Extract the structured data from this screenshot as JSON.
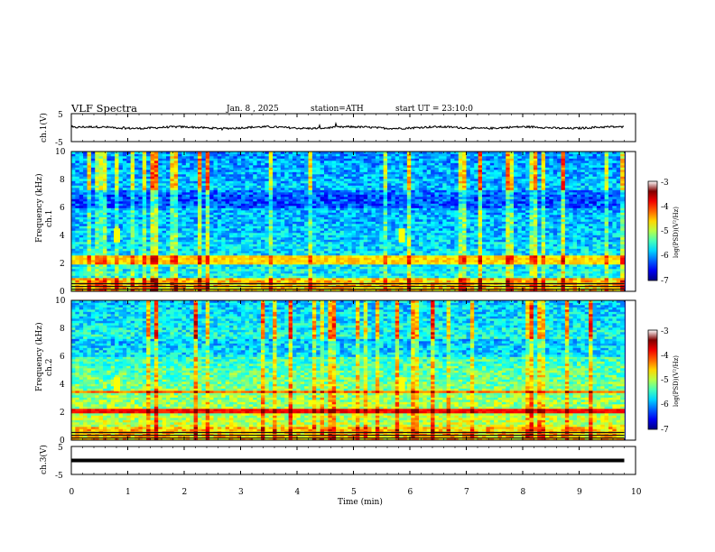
{
  "header": {
    "title": "VLF Spectra",
    "date": "Jan. 8 , 2025",
    "station": "station=ATH",
    "start_ut": "start UT = 23:10:0"
  },
  "chart_data": [
    {
      "type": "line",
      "name": "ch1-waveform",
      "ylabel": "ch.1(V)",
      "ylim": [
        -5,
        5
      ],
      "xlim": [
        0,
        10
      ],
      "x_extent": [
        0,
        9.8
      ],
      "ytick_labels": [
        "5",
        "-5"
      ],
      "level": 0.0,
      "noise_amplitude": 0.35
    },
    {
      "type": "heatmap",
      "name": "ch1-spectrogram",
      "ylabel": "Frequency (kHz)",
      "channel_label": "ch.1",
      "ylim": [
        0,
        10
      ],
      "xlim": [
        0,
        10
      ],
      "x_extent": [
        0,
        9.8
      ],
      "ytick_labels": [
        "0",
        "2",
        "4",
        "6",
        "8",
        "10"
      ],
      "colorbar": {
        "label": "log(PSD)(V²/Hz)",
        "range": [
          -7,
          -3
        ],
        "tick_labels": [
          "-3",
          "-4",
          "-5",
          "-6",
          "-7"
        ]
      },
      "features": {
        "band_khz": [
          2.0,
          2.5
        ],
        "sferic_times_min": [
          0.8,
          5.85
        ],
        "low_freq_lines_khz": [
          0.3,
          0.8
        ]
      }
    },
    {
      "type": "heatmap",
      "name": "ch2-spectrogram",
      "ylabel": "Frequency (kHz)",
      "channel_label": "ch.2",
      "ylim": [
        0,
        10
      ],
      "xlim": [
        0,
        10
      ],
      "x_extent": [
        0,
        9.8
      ],
      "ytick_labels": [
        "0",
        "2",
        "4",
        "6",
        "8",
        "10"
      ],
      "colorbar": {
        "label": "log(PSD)(V²/Hz)",
        "range": [
          -7,
          -3
        ],
        "tick_labels": [
          "-3",
          "-4",
          "-5",
          "-6",
          "-7"
        ]
      },
      "features": {
        "band_khz": [
          2.0,
          2.3
        ],
        "secondary_band_khz": [
          3.4,
          3.6
        ],
        "sferic_times_min": [
          0.8,
          5.85
        ]
      }
    },
    {
      "type": "line",
      "name": "ch3-waveform",
      "ylabel": "ch.3(V)",
      "xlabel": "Time (min)",
      "ylim": [
        -5,
        5
      ],
      "xlim": [
        0,
        10
      ],
      "x_extent": [
        0,
        9.8
      ],
      "ytick_labels": [
        "5",
        "-5"
      ],
      "xtick_labels": [
        "0",
        "1",
        "2",
        "3",
        "4",
        "5",
        "6",
        "7",
        "8",
        "9",
        "10"
      ],
      "level": 0.0
    }
  ]
}
